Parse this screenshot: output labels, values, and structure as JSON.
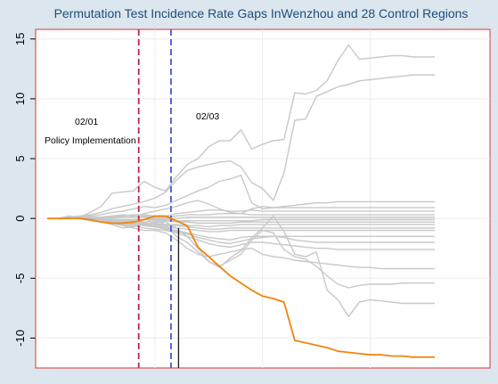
{
  "chart_data": {
    "type": "line",
    "title": "Permutation Test Incidence Rate Gaps InWenzhou and 28 Control Regions",
    "xlabel": "",
    "ylabel": "",
    "x": [
      0,
      1,
      2,
      3,
      4,
      5,
      6,
      7,
      8,
      9,
      10,
      11,
      12,
      13,
      14,
      15,
      16,
      17,
      18,
      19,
      20,
      21,
      22,
      23,
      24,
      25,
      26,
      27,
      28,
      29,
      30,
      31,
      32,
      33,
      34,
      35,
      36
    ],
    "ylim": [
      -12.5,
      15.8
    ],
    "yticks": [
      15,
      10,
      5,
      0,
      -5,
      -10
    ],
    "ytick_labels": [
      "15",
      "10",
      "5",
      "0",
      "-5",
      "-10"
    ],
    "grid": true,
    "vlines": [
      {
        "x": 8.5,
        "style": "dashed",
        "color": "#c0204f",
        "label": "02/01"
      },
      {
        "x": 11.5,
        "style": "dashed",
        "color": "#4b55d6",
        "label": "02/03"
      },
      {
        "x": 12.2,
        "style": "solid",
        "color": "#1a1a1a",
        "label": ""
      }
    ],
    "annotations": [
      "02/01",
      "Policy Implementation",
      "02/03"
    ],
    "treated_series": {
      "color": "#f0850a",
      "values": [
        0,
        0,
        0,
        0,
        -0.1,
        -0.3,
        -0.4,
        -0.4,
        -0.3,
        -0.1,
        0.2,
        0.2,
        -0.2,
        -0.6,
        -2.4,
        -3.2,
        -4.0,
        -4.8,
        -5.4,
        -6.0,
        -6.5,
        -6.7,
        -7.0,
        -10.2,
        -10.4,
        -10.6,
        -10.8,
        -11.1,
        -11.2,
        -11.3,
        -11.4,
        -11.4,
        -11.5,
        -11.5,
        -11.6,
        -11.6,
        -11.6
      ]
    },
    "control_color": "#c8c8c8",
    "control_series": [
      {
        "values": [
          0,
          0,
          0.2,
          0.1,
          0.5,
          1,
          2.1,
          2.2,
          2.3,
          3.1,
          2.6,
          2.3,
          3.5,
          4.5,
          5,
          6,
          6.5,
          6.5,
          7.4,
          5.8,
          6.2,
          6.5,
          6.6,
          10.5,
          10.4,
          10.7,
          11.5,
          13.2,
          14.5,
          13.3,
          13.4,
          13.5,
          13.6,
          13.6,
          13.5,
          13.5,
          13.5
        ]
      },
      {
        "values": [
          0,
          0,
          0.1,
          0.2,
          0.3,
          0.5,
          0.8,
          1.0,
          1.2,
          1.4,
          1.7,
          2.2,
          3.2,
          4.0,
          4.3,
          4.5,
          4.7,
          4.8,
          4.3,
          3.0,
          2.5,
          1.5,
          3.8,
          8.2,
          8.3,
          10.2,
          10.6,
          11.0,
          11.2,
          11.5,
          11.6,
          11.7,
          11.8,
          11.9,
          12.0,
          12.0,
          12.0
        ]
      },
      {
        "values": [
          0,
          0,
          0.1,
          0.1,
          0.2,
          0.3,
          0.5,
          0.6,
          0.8,
          1.0,
          0.9,
          1.1,
          1.5,
          1.9,
          2.3,
          2.6,
          3.1,
          3.3,
          3.6,
          1.3,
          0.8,
          0.9,
          1.0,
          1.1,
          1.2,
          1.3,
          1.3,
          1.4,
          1.4,
          1.4,
          1.4,
          1.4,
          1.4,
          1.4,
          1.4,
          1.4,
          1.4
        ]
      },
      {
        "values": [
          0,
          0,
          0,
          0,
          0.1,
          0.1,
          0.2,
          0.3,
          0.2,
          0.4,
          0.6,
          0.8,
          1.0,
          1.3,
          1.5,
          1.2,
          0.8,
          0.5,
          0.4,
          0.8,
          1.0,
          0.9,
          0.9,
          0.9,
          0.9,
          0.9,
          0.9,
          0.9,
          0.9,
          0.9,
          0.9,
          0.9,
          0.9,
          0.9,
          0.9,
          0.9,
          0.9
        ]
      },
      {
        "values": [
          0,
          0,
          0,
          0.1,
          0.1,
          0.1,
          0.2,
          0.2,
          0.3,
          0.3,
          0.2,
          0.2,
          0.4,
          0.5,
          0.6,
          0.7,
          0.7,
          0.6,
          0.6,
          0.7,
          0.6,
          0.6,
          0.6,
          0.6,
          0.6,
          0.6,
          0.6,
          0.6,
          0.6,
          0.6,
          0.6,
          0.6,
          0.6,
          0.6,
          0.6,
          0.6,
          0.6
        ]
      },
      {
        "values": [
          0,
          0,
          0,
          0,
          0,
          0.1,
          0.1,
          0.1,
          0.1,
          0.2,
          0.1,
          0.1,
          0.2,
          0.3,
          0.3,
          0.3,
          0.4,
          0.4,
          0.4,
          0.3,
          0.3,
          0.3,
          0.3,
          0.3,
          0.3,
          0.3,
          0.3,
          0.3,
          0.3,
          0.3,
          0.3,
          0.3,
          0.3,
          0.3,
          0.3,
          0.3,
          0.3
        ]
      },
      {
        "values": [
          0,
          0,
          0,
          0,
          0,
          0,
          0,
          0.1,
          0.1,
          0.1,
          0,
          0,
          0,
          0.1,
          0.1,
          0.1,
          0.1,
          0.1,
          0.1,
          0.1,
          0.1,
          0.1,
          0.1,
          0.1,
          0.1,
          0.1,
          0.1,
          0.1,
          0.1,
          0.1,
          0.1,
          0.1,
          0.1,
          0.1,
          0.1,
          0.1,
          0.1
        ]
      },
      {
        "values": [
          0,
          0,
          0,
          0,
          0,
          -0.1,
          -0.1,
          -0.1,
          -0.1,
          -0.1,
          -0.1,
          -0.1,
          -0.2,
          -0.2,
          -0.2,
          -0.2,
          -0.2,
          -0.2,
          -0.2,
          -0.2,
          -0.1,
          -0.1,
          -0.1,
          -0.1,
          -0.1,
          -0.1,
          -0.1,
          -0.1,
          -0.1,
          -0.1,
          -0.1,
          -0.1,
          -0.1,
          -0.1,
          -0.1,
          -0.1,
          -0.1
        ]
      },
      {
        "values": [
          0,
          0,
          0,
          0,
          -0.1,
          -0.1,
          -0.2,
          -0.2,
          -0.2,
          -0.3,
          -0.2,
          -0.2,
          -0.3,
          -0.3,
          -0.4,
          -0.4,
          -0.4,
          -0.4,
          -0.3,
          -0.3,
          -0.3,
          -0.3,
          -0.3,
          -0.3,
          -0.3,
          -0.3,
          -0.3,
          -0.3,
          -0.3,
          -0.3,
          -0.3,
          -0.3,
          -0.3,
          -0.3,
          -0.3,
          -0.3,
          -0.3
        ]
      },
      {
        "values": [
          0,
          0,
          0,
          0,
          -0.1,
          -0.1,
          -0.2,
          -0.3,
          -0.3,
          -0.4,
          -0.4,
          -0.5,
          -0.5,
          -0.6,
          -0.6,
          -0.7,
          -0.6,
          -0.6,
          -0.5,
          -0.5,
          -0.5,
          -0.5,
          -0.5,
          -0.5,
          -0.5,
          -0.5,
          -0.5,
          -0.5,
          -0.5,
          -0.5,
          -0.5,
          -0.5,
          -0.5,
          -0.5,
          -0.5,
          -0.5,
          -0.5
        ]
      },
      {
        "values": [
          0,
          0,
          0,
          0,
          -0.1,
          -0.2,
          -0.3,
          -0.4,
          -0.4,
          -0.5,
          -0.5,
          -0.6,
          -0.6,
          -0.7,
          -0.8,
          -0.9,
          -0.9,
          -0.8,
          -0.8,
          -0.8,
          -0.8,
          -0.8,
          -0.8,
          -0.8,
          -0.8,
          -0.8,
          -0.8,
          -0.8,
          -0.8,
          -0.8,
          -0.8,
          -0.8,
          -0.8,
          -0.8,
          -0.8,
          -0.8,
          -0.8
        ]
      },
      {
        "values": [
          0,
          0,
          0,
          0,
          -0.1,
          -0.2,
          -0.3,
          -0.4,
          -0.5,
          -0.6,
          -0.6,
          -0.7,
          -0.8,
          -0.9,
          -1.0,
          -1.1,
          -1.1,
          -1.0,
          -1.0,
          -1.0,
          -1.0,
          -1.0,
          -1.0,
          -1.0,
          -1.0,
          -1.0,
          -1.0,
          -1.0,
          -1.0,
          -1.0,
          -1.0,
          -1.0,
          -1.0,
          -1.0,
          -1.0,
          -1.0,
          -1.0
        ]
      },
      {
        "values": [
          0,
          0,
          0,
          0,
          -0.1,
          -0.2,
          -0.3,
          -0.4,
          -0.5,
          -0.6,
          -0.7,
          -0.8,
          -1.0,
          -1.2,
          -1.4,
          -1.6,
          -1.7,
          -1.8,
          -1.6,
          -1.5,
          -1.5,
          -1.5,
          -1.5,
          -1.5,
          -1.5,
          -1.5,
          -1.5,
          -1.5,
          -1.5,
          -1.5,
          -1.5,
          -1.5,
          -1.5,
          -1.5,
          -1.5,
          -1.5,
          -1.5
        ]
      },
      {
        "values": [
          0,
          0,
          0,
          0,
          -0.1,
          -0.2,
          -0.3,
          -0.4,
          -0.5,
          -0.6,
          -0.7,
          -0.9,
          -1.1,
          -1.3,
          -1.6,
          -1.8,
          -2.0,
          -2.1,
          -1.9,
          -1.7,
          -1.6,
          -1.5,
          -1.6,
          -1.8,
          -1.9,
          -2.0,
          -2.0,
          -2.0,
          -2.0,
          -2.0,
          -2.0,
          -2.0,
          -2.0,
          -2.0,
          -2.0,
          -2.0,
          -2.0
        ]
      },
      {
        "values": [
          0,
          0,
          0,
          0,
          -0.1,
          -0.2,
          -0.3,
          -0.5,
          -0.6,
          -0.8,
          -0.9,
          -1.0,
          -1.2,
          -1.5,
          -1.8,
          -2.1,
          -2.3,
          -2.4,
          -2.2,
          -2.0,
          -2.0,
          -2.1,
          -2.2,
          -2.3,
          -2.4,
          -2.5,
          -2.5,
          -2.6,
          -2.6,
          -2.6,
          -2.6,
          -2.6,
          -2.6,
          -2.6,
          -2.6,
          -2.6,
          -2.6
        ]
      },
      {
        "values": [
          0,
          0,
          0,
          0,
          -0.1,
          -0.2,
          -0.4,
          -0.6,
          -0.8,
          -1.0,
          -1.0,
          -1.2,
          -1.8,
          -2.5,
          -3.0,
          -3.2,
          -3.0,
          -2.8,
          -2.6,
          -2.5,
          -3.0,
          -3.2,
          -3.3,
          -3.5,
          -3.6,
          -3.7,
          -3.8,
          -3.9,
          -4.0,
          -4.1,
          -4.1,
          -4.2,
          -4.2,
          -4.2,
          -4.2,
          -4.2,
          -4.2
        ]
      },
      {
        "values": [
          0,
          0,
          0,
          0,
          -0.2,
          -0.3,
          -0.5,
          -0.8,
          -0.7,
          -0.4,
          0.1,
          -0.6,
          -1.5,
          -2.0,
          -2.8,
          -3.6,
          -4.0,
          -3.5,
          -3.0,
          -1.8,
          -1.0,
          -1.2,
          -2.6,
          -3.2,
          -3.4,
          -4.0,
          -4.8,
          -5.5,
          -5.8,
          -5.6,
          -5.5,
          -5.5,
          -5.5,
          -5.4,
          -5.4,
          -5.4,
          -5.4
        ]
      },
      {
        "values": [
          0,
          0,
          0,
          0,
          -0.1,
          -0.2,
          -0.3,
          -0.5,
          -0.7,
          -0.5,
          -0.3,
          -0.3,
          -0.8,
          -1.5,
          -2.5,
          -3.6,
          -4.1,
          -3.3,
          -2.7,
          -1.6,
          -0.8,
          0.2,
          -1.1,
          -3.0,
          -3.2,
          -2.8,
          -6.0,
          -6.8,
          -8.2,
          -7.0,
          -6.8,
          -6.9,
          -7.0,
          -7.1,
          -7.1,
          -7.1,
          -7.1
        ]
      }
    ]
  }
}
